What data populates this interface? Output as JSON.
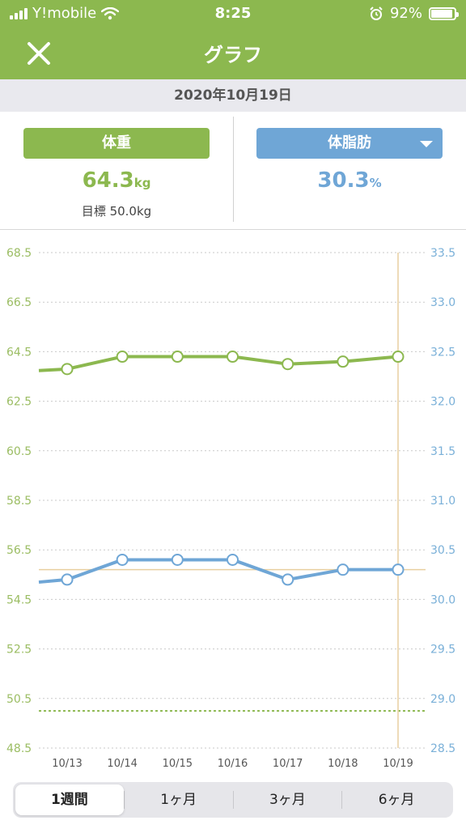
{
  "status": {
    "carrier": "Y!mobile",
    "time": "8:25",
    "battery": "92%",
    "battery_level": 0.92
  },
  "nav": {
    "title": "グラフ"
  },
  "date": "2020年10月19日",
  "summary": {
    "weight": {
      "label": "体重",
      "value": "64.3",
      "unit": "kg",
      "goal": "目標 50.0kg"
    },
    "fat": {
      "label": "体脂肪",
      "value": "30.3",
      "unit": "%"
    }
  },
  "colors": {
    "accent": "#8cb84f",
    "weight": "#8cb84f",
    "fat": "#6fa6d6",
    "guide": "#e8cfa0"
  },
  "chart_data": {
    "type": "line",
    "categories": [
      "10/13",
      "10/14",
      "10/15",
      "10/16",
      "10/17",
      "10/18",
      "10/19"
    ],
    "series": [
      {
        "axis": "left",
        "values": [
          63.8,
          64.3,
          64.3,
          64.3,
          64.0,
          64.1,
          64.3
        ]
      },
      {
        "axis": "right",
        "values": [
          30.2,
          30.4,
          30.4,
          30.4,
          30.2,
          30.3,
          30.3
        ]
      }
    ],
    "y_left": {
      "ylim": [
        48.5,
        68.5
      ],
      "ticks": [
        "68.5",
        "66.5",
        "64.5",
        "62.5",
        "60.5",
        "58.5",
        "56.5",
        "54.5",
        "52.5",
        "50.5",
        "48.5"
      ]
    },
    "y_right": {
      "ylim": [
        28.5,
        33.5
      ],
      "ticks": [
        "33.5",
        "33.0",
        "32.5",
        "32.0",
        "31.5",
        "31.0",
        "30.5",
        "30.0",
        "29.5",
        "29.0",
        "28.5"
      ]
    },
    "goal_weight": 50.0,
    "fat_reference": 30.3,
    "selected_category": "10/19",
    "grid": true
  },
  "periods": [
    "1週間",
    "1ヶ月",
    "3ヶ月",
    "6ヶ月"
  ],
  "selected_period": "1週間"
}
